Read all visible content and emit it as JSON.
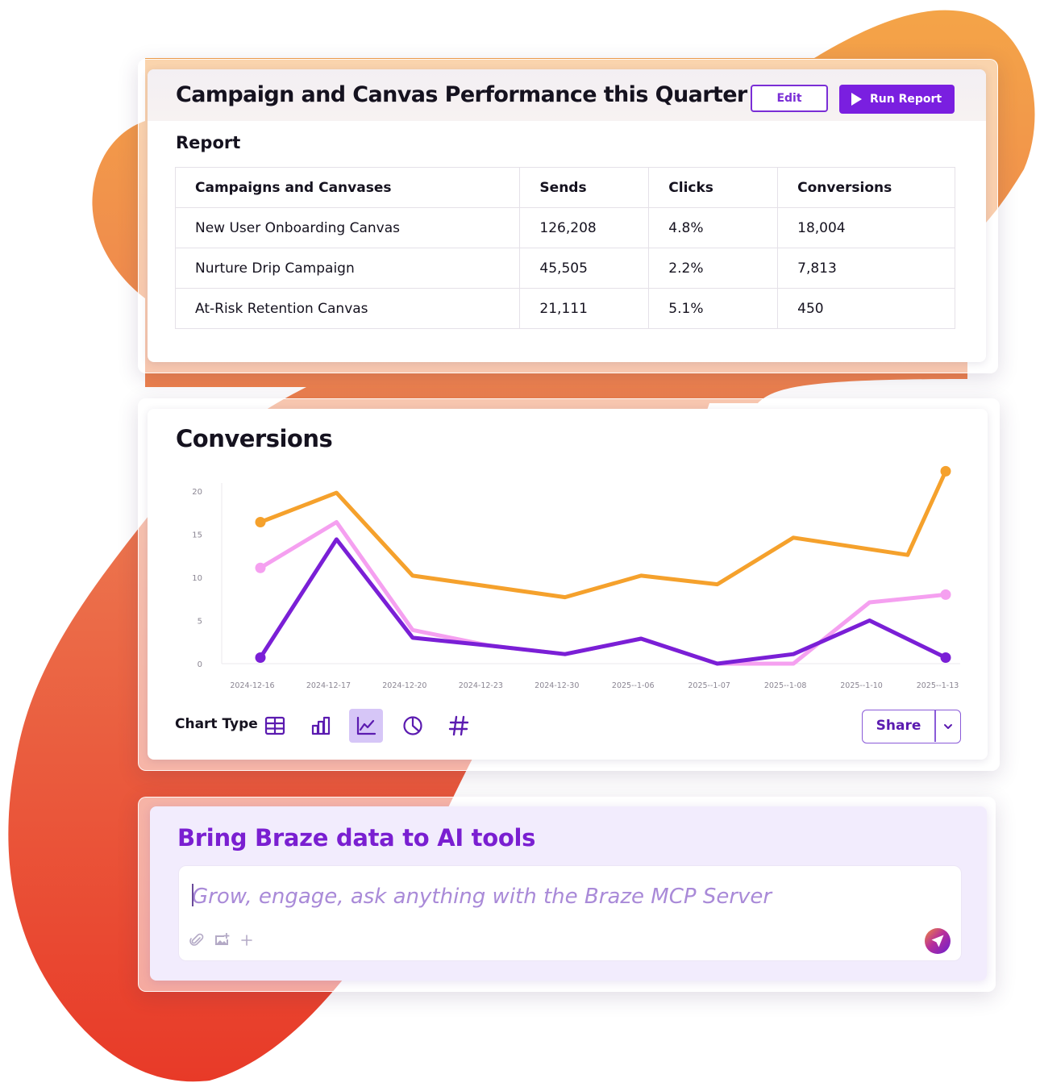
{
  "report": {
    "title": "Campaign and Canvas Performance this Quarter",
    "edit_label": "Edit",
    "run_label": "Run Report",
    "section_label": "Report",
    "columns": [
      "Campaigns and Canvases",
      "Sends",
      "Clicks",
      "Conversions"
    ],
    "rows": [
      [
        "New User Onboarding Canvas",
        "126,208",
        "4.8%",
        "18,004"
      ],
      [
        "Nurture Drip Campaign",
        "45,505",
        "2.2%",
        "7,813"
      ],
      [
        "At-Risk Retention Canvas",
        "21,111",
        "5.1%",
        "450"
      ]
    ]
  },
  "conversions": {
    "title": "Conversions",
    "chart_type_label": "Chart Type",
    "chart_type_icons": [
      "table-icon",
      "bar-chart-icon",
      "line-chart-icon",
      "pie-chart-icon",
      "hash-icon"
    ],
    "active_chart_type": "line-chart-icon",
    "share_label": "Share"
  },
  "chart_data": {
    "type": "line",
    "title": "",
    "xlabel": "",
    "ylabel": "",
    "ylim": [
      0,
      20
    ],
    "yticks": [
      "0",
      "5",
      "10",
      "15",
      "20"
    ],
    "categories": [
      "2024-12-16",
      "2024-12-17",
      "2024-12-20",
      "2024-12-23",
      "2024-12-30",
      "2025--1-06",
      "2025--1-07",
      "2025--1-08",
      "2025--1-10",
      "2025--1-13"
    ],
    "series": [
      {
        "color": "#f5a12c",
        "values": [
          16.4,
          19.8,
          10.2,
          null,
          7.7,
          10.2,
          9.2,
          14.6,
          null,
          22.3
        ],
        "extra_points": [
          [
            8.5,
            12.6
          ]
        ]
      },
      {
        "color": "#f5a0f0",
        "values": [
          11.1,
          16.4,
          3.9,
          2.1,
          1.1,
          2.9,
          0.0,
          0.0,
          7.1,
          8.0
        ]
      },
      {
        "color": "#7a1fd6",
        "values": [
          0.7,
          14.4,
          3.0,
          2.1,
          1.1,
          2.9,
          0.0,
          1.1,
          5.0,
          0.7
        ]
      }
    ],
    "grid": false,
    "legend": "none"
  },
  "ai": {
    "title": "Bring Braze data to AI tools",
    "placeholder": "Grow, engage, ask anything with the Braze MCP Server"
  },
  "colors": {
    "accent": "#7a1fe0",
    "blob_top": "#f4a04a",
    "blob_bottom": "#e8382a"
  }
}
